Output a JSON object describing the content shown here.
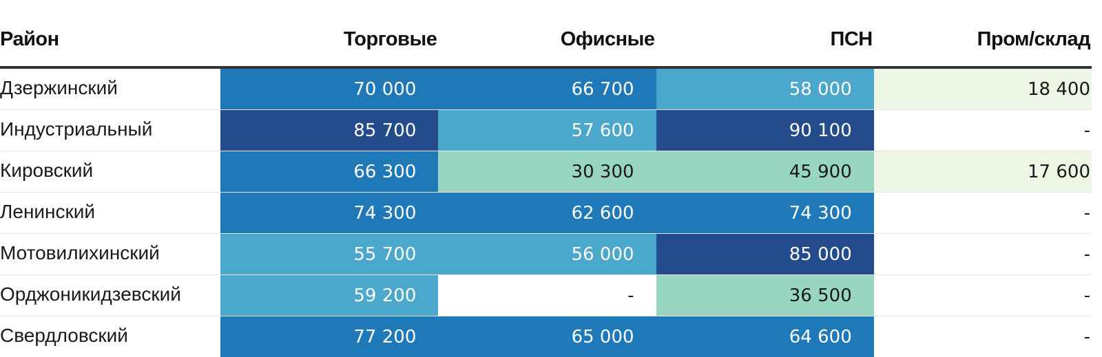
{
  "chart_data": {
    "type": "heatmap",
    "columns": [
      "Район",
      "Торговые",
      "Офисные",
      "ПСН",
      "Пром/склад"
    ],
    "rows": [
      {
        "district": "Дзержинский",
        "values": [
          70000,
          66700,
          58000,
          18400
        ],
        "labels": [
          "70 000",
          "66 700",
          "58 000",
          "18 400"
        ]
      },
      {
        "district": "Индустриальный",
        "values": [
          85700,
          57600,
          90100,
          null
        ],
        "labels": [
          "85 700",
          "57 600",
          "90 100",
          "-"
        ]
      },
      {
        "district": "Кировский",
        "values": [
          66300,
          30300,
          45900,
          17600
        ],
        "labels": [
          "66 300",
          "30 300",
          "45 900",
          "17 600"
        ]
      },
      {
        "district": "Ленинский",
        "values": [
          74300,
          62600,
          74300,
          null
        ],
        "labels": [
          "74 300",
          "62 600",
          "74 300",
          "-"
        ]
      },
      {
        "district": "Мотовилихинский",
        "values": [
          55700,
          56000,
          85000,
          null
        ],
        "labels": [
          "55 700",
          "56 000",
          "85 000",
          "-"
        ]
      },
      {
        "district": "Орджоникидзевский",
        "values": [
          59200,
          null,
          36500,
          null
        ],
        "labels": [
          "59 200",
          "-",
          "36 500",
          "-"
        ]
      },
      {
        "district": "Свердловский",
        "values": [
          77200,
          65000,
          64600,
          null
        ],
        "labels": [
          "77 200",
          "65 000",
          "64 600",
          "-"
        ]
      }
    ],
    "colors": {
      "lightest": "#eef7e6",
      "light": "#99d6c2",
      "mid": "#4ba8cc",
      "strong": "#1f78b8",
      "darkest": "#244b8c",
      "empty": "#ffffff",
      "text_dark": "#1a1a1a",
      "text_light": "#ffffff"
    }
  }
}
